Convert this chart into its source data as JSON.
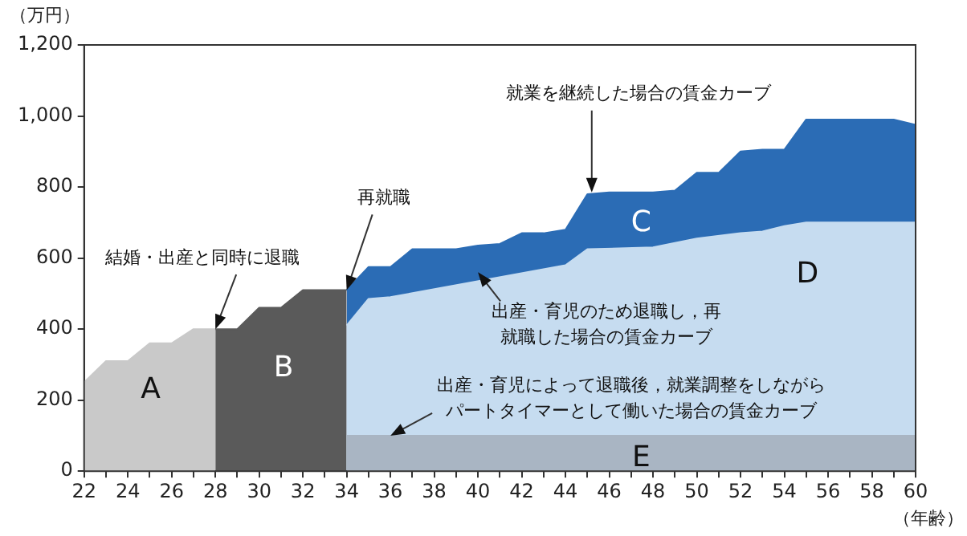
{
  "chart_data": {
    "type": "area",
    "xlabel": "（年齢）",
    "ylabel": "（万円）",
    "xlim": [
      22,
      60
    ],
    "ylim": [
      0,
      1200
    ],
    "xticks": [
      22,
      {
        "value": 23,
        "label": null
      },
      24,
      {
        "value": 25,
        "label": null
      },
      26,
      {
        "value": 27,
        "label": null
      },
      28,
      {
        "value": 29,
        "label": null
      },
      30,
      {
        "value": 31,
        "label": null
      },
      32,
      {
        "value": 33,
        "label": null
      },
      34,
      {
        "value": 35,
        "label": null
      },
      36,
      {
        "value": 37,
        "label": null
      },
      38,
      {
        "value": 39,
        "label": null
      },
      40,
      {
        "value": 41,
        "label": null
      },
      42,
      {
        "value": 43,
        "label": null
      },
      44,
      {
        "value": 45,
        "label": null
      },
      46,
      {
        "value": 47,
        "label": null
      },
      48,
      {
        "value": 49,
        "label": null
      },
      50,
      {
        "value": 51,
        "label": null
      },
      52,
      {
        "value": 53,
        "label": null
      },
      54,
      {
        "value": 55,
        "label": null
      },
      56,
      {
        "value": 57,
        "label": null
      },
      58,
      {
        "value": 59,
        "label": null
      },
      60
    ],
    "yticks": [
      0,
      200,
      400,
      600,
      800,
      {
        "value": 1000,
        "label": "1,000"
      },
      {
        "value": 1200,
        "label": "1,200"
      }
    ],
    "grid": false,
    "legend": false,
    "series": [
      {
        "color": "#c9c9c9",
        "x": [
          22,
          23,
          24,
          25,
          26,
          27,
          28
        ],
        "values": [
          250,
          310,
          310,
          360,
          360,
          400,
          400
        ]
      },
      {
        "color": "#5a5a5a",
        "x": [
          28,
          29,
          30,
          31,
          32,
          33,
          34
        ],
        "values": [
          400,
          400,
          460,
          460,
          510,
          510,
          510
        ]
      },
      {
        "color": "#2b6cb5",
        "x": [
          34,
          35,
          36,
          37,
          38,
          39,
          40,
          41,
          42,
          43,
          44,
          45,
          46,
          47,
          48,
          49,
          50,
          51,
          52,
          53,
          54,
          55,
          56,
          57,
          58,
          59,
          60
        ],
        "values": [
          510,
          575,
          575,
          625,
          625,
          625,
          635,
          640,
          670,
          670,
          680,
          780,
          785,
          785,
          785,
          790,
          840,
          840,
          900,
          905,
          905,
          990,
          990,
          990,
          990,
          990,
          975
        ]
      },
      {
        "color": "#c6dcf0",
        "x": [
          34,
          35,
          36,
          44,
          45,
          48,
          50,
          52,
          53,
          54,
          55,
          60
        ],
        "values": [
          410,
          485,
          490,
          580,
          625,
          630,
          655,
          670,
          675,
          690,
          700,
          700
        ]
      },
      {
        "color": "#a9b5c3",
        "x": [
          34,
          60
        ],
        "values": [
          100,
          100
        ]
      }
    ],
    "annotations": [
      "A",
      "B",
      "C",
      "D",
      "E",
      {
        "text": "就業を継続した場合の賃金カーブ",
        "x": 45.2,
        "y": 785
      },
      {
        "text": "再就職",
        "x": 34,
        "y": 510
      },
      {
        "text": "結婚・出産と同時に退職",
        "x": 28,
        "y": 400
      },
      {
        "text": "出産・育児のため退職し，再就職した場合の賃金カーブ",
        "x": 40,
        "y": 560
      },
      {
        "text": "出産・育児によって退職後，就業調整をしながらパートタイマーとして働いた場合の賃金カーブ",
        "x": 36,
        "y": 100
      }
    ]
  }
}
